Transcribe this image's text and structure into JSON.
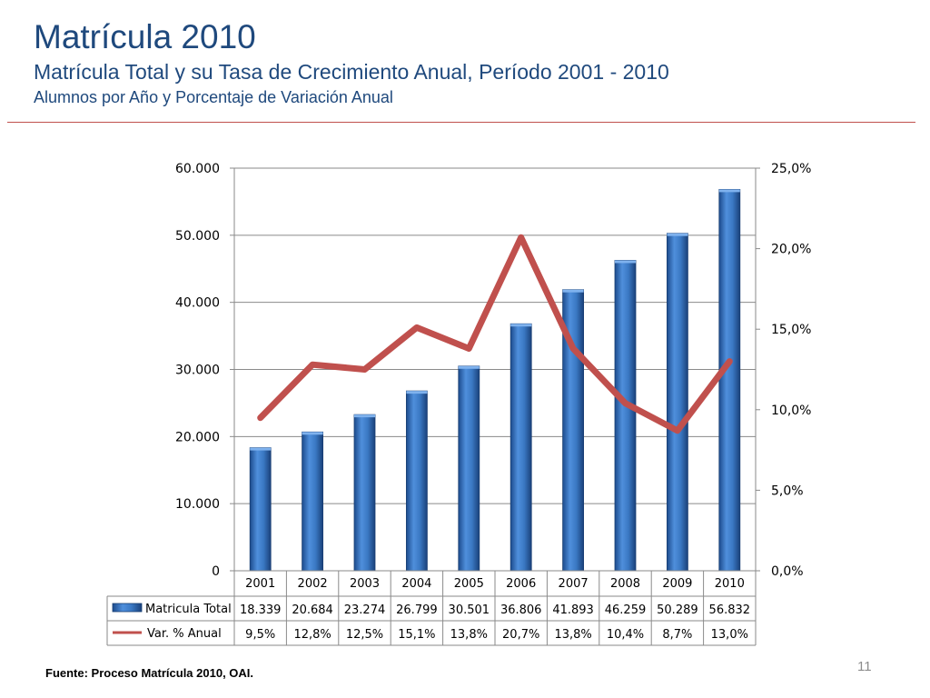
{
  "header": {
    "title": "Matrícula 2010",
    "subtitle": "Matrícula Total y su Tasa de Crecimiento Anual, Período 2001 - 2010",
    "subtitle2": "Alumnos por Año y Porcentaje de Variación Anual"
  },
  "footer": {
    "source": "Fuente: Proceso Matrícula 2010, OAI.",
    "page_number": "11"
  },
  "colors": {
    "accent": "#1f497d",
    "bar": "#3a78c3",
    "line": "#c0504d",
    "rule": "#c0504d"
  },
  "chart_data": {
    "type": "bar",
    "categories": [
      "2001",
      "2002",
      "2003",
      "2004",
      "2005",
      "2006",
      "2007",
      "2008",
      "2009",
      "2010"
    ],
    "series": [
      {
        "name": "Matricula Total",
        "type": "bar",
        "axis": "left",
        "values": [
          18339,
          20684,
          23274,
          26799,
          30501,
          36806,
          41893,
          46259,
          50289,
          56832
        ],
        "labels": [
          "18.339",
          "20.684",
          "23.274",
          "26.799",
          "30.501",
          "36.806",
          "41.893",
          "46.259",
          "50.289",
          "56.832"
        ]
      },
      {
        "name": "Var. % Anual",
        "type": "line",
        "axis": "right",
        "values": [
          9.5,
          12.8,
          12.5,
          15.1,
          13.8,
          20.7,
          13.8,
          10.4,
          8.7,
          13.0
        ],
        "labels": [
          "9,5%",
          "12,8%",
          "12,5%",
          "15,1%",
          "13,8%",
          "20,7%",
          "13,8%",
          "10,4%",
          "8,7%",
          "13,0%"
        ]
      }
    ],
    "y_left": {
      "lim": [
        0,
        60000
      ],
      "ticks": [
        0,
        10000,
        20000,
        30000,
        40000,
        50000,
        60000
      ],
      "tick_labels": [
        "0",
        "10.000",
        "20.000",
        "30.000",
        "40.000",
        "50.000",
        "60.000"
      ]
    },
    "y_right": {
      "lim": [
        0,
        25
      ],
      "ticks": [
        0,
        5,
        10,
        15,
        20,
        25
      ],
      "tick_labels": [
        "0,0%",
        "5,0%",
        "10,0%",
        "15,0%",
        "20,0%",
        "25,0%"
      ]
    },
    "grid": true,
    "legend": "data-table-below"
  }
}
